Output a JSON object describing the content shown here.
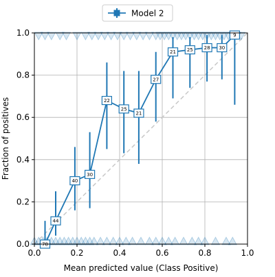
{
  "chart_data": {
    "type": "line",
    "xlabel": "Mean predicted value (Class Positive)",
    "ylabel": "Fraction of positives",
    "xlim": [
      0,
      1
    ],
    "ylim": [
      0,
      1
    ],
    "xticks": [
      "0.0",
      "0.2",
      "0.4",
      "0.6",
      "0.8",
      "1.0"
    ],
    "yticks": [
      "0.0",
      "0.2",
      "0.4",
      "0.6",
      "0.8",
      "1.0"
    ],
    "grid": true,
    "legend": {
      "position": "top-center",
      "entries": [
        "Model 2"
      ]
    },
    "reference_line": {
      "style": "dashed",
      "color": "#c8c8c8",
      "from": [
        0,
        0
      ],
      "to": [
        1,
        1
      ]
    },
    "series": [
      {
        "name": "Model 2",
        "color": "#1f77b4",
        "marker": "square",
        "x": [
          0.05,
          0.1,
          0.19,
          0.26,
          0.34,
          0.42,
          0.49,
          0.57,
          0.65,
          0.73,
          0.81,
          0.88,
          0.94
        ],
        "y": [
          0.0,
          0.11,
          0.3,
          0.33,
          0.68,
          0.64,
          0.62,
          0.78,
          0.91,
          0.92,
          0.93,
          0.93,
          0.99
        ],
        "y_low": [
          0.0,
          0.04,
          0.16,
          0.17,
          0.45,
          0.43,
          0.38,
          0.58,
          0.69,
          0.74,
          0.77,
          0.78,
          0.66
        ],
        "y_high": [
          0.11,
          0.25,
          0.46,
          0.53,
          0.86,
          0.82,
          0.82,
          0.91,
          0.98,
          0.98,
          0.99,
          0.99,
          1.0
        ],
        "counts": [
          "78",
          "44",
          "40",
          "30",
          "22",
          "25",
          "21",
          "27",
          "21",
          "25",
          "28",
          "30",
          "9"
        ]
      }
    ],
    "rug": {
      "color": "#1f77b4",
      "marker": "triangle",
      "bottom_x": [
        0.0,
        0.02,
        0.04,
        0.06,
        0.08,
        0.1,
        0.12,
        0.14,
        0.16,
        0.18,
        0.2,
        0.22,
        0.24,
        0.26,
        0.28,
        0.31,
        0.34,
        0.37,
        0.4,
        0.43,
        0.46,
        0.5,
        0.54,
        0.57,
        0.6,
        0.63,
        0.66,
        0.7,
        0.74,
        0.77,
        0.8,
        0.85,
        0.9,
        0.93
      ],
      "top_x": [
        0.02,
        0.05,
        0.08,
        0.12,
        0.15,
        0.2,
        0.24,
        0.27,
        0.3,
        0.33,
        0.36,
        0.39,
        0.42,
        0.45,
        0.48,
        0.51,
        0.54,
        0.57,
        0.59,
        0.61,
        0.63,
        0.65,
        0.67,
        0.69,
        0.71,
        0.73,
        0.75,
        0.77,
        0.79,
        0.81,
        0.83,
        0.85,
        0.87,
        0.89,
        0.91,
        0.93,
        0.95,
        0.97
      ]
    }
  }
}
